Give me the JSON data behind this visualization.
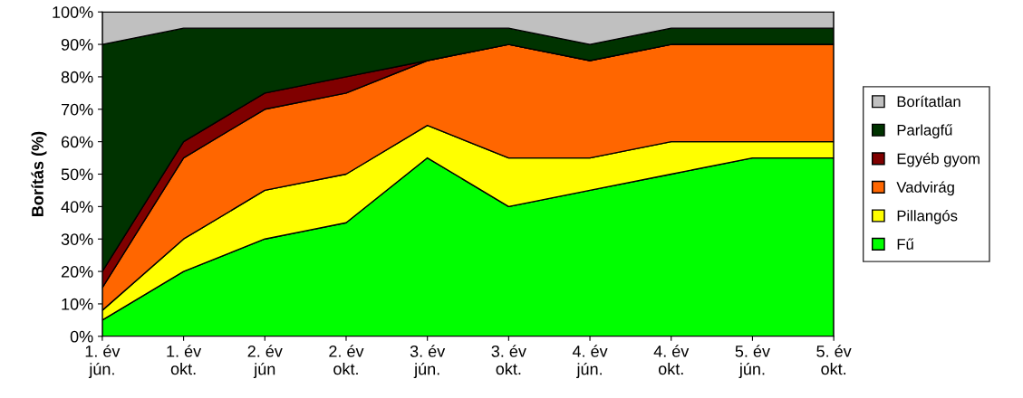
{
  "chart_data": {
    "type": "area",
    "stacked": true,
    "ylabel": "Borítás (%)",
    "categories": [
      "1. év\njún.",
      "1. év\nokt.",
      "2. év\njún",
      "2. év\nokt.",
      "3. év\njún.",
      "3. év\nokt.",
      "4. év\njún.",
      "4. év\nokt.",
      "5. év\njún.",
      "5. év\nokt."
    ],
    "ylim": [
      0,
      100
    ],
    "yticks": [
      {
        "value": 0,
        "label": "0%"
      },
      {
        "value": 10,
        "label": "10%"
      },
      {
        "value": 20,
        "label": "20%"
      },
      {
        "value": 30,
        "label": "30%"
      },
      {
        "value": 40,
        "label": "40%"
      },
      {
        "value": 50,
        "label": "50%"
      },
      {
        "value": 60,
        "label": "60%"
      },
      {
        "value": 70,
        "label": "70%"
      },
      {
        "value": 80,
        "label": "80%"
      },
      {
        "value": 90,
        "label": "90%"
      },
      {
        "value": 100,
        "label": "100%"
      }
    ],
    "grid": false,
    "legend": "right",
    "series": [
      {
        "name": "Fű",
        "color": "#00ff00",
        "values": [
          5,
          20,
          30,
          35,
          55,
          40,
          45,
          50,
          55,
          55
        ]
      },
      {
        "name": "Pillangós",
        "color": "#ffff00",
        "values": [
          3,
          10,
          15,
          15,
          10,
          15,
          10,
          10,
          5,
          5
        ]
      },
      {
        "name": "Vadvirág",
        "color": "#ff6600",
        "values": [
          7,
          25,
          25,
          25,
          20,
          35,
          30,
          30,
          30,
          30
        ]
      },
      {
        "name": "Egyéb gyom",
        "color": "#800000",
        "values": [
          5,
          5,
          5,
          5,
          0,
          0,
          0,
          0,
          0,
          0
        ]
      },
      {
        "name": "Parlagfű",
        "color": "#003300",
        "values": [
          70,
          35,
          20,
          15,
          10,
          5,
          5,
          5,
          5,
          5
        ]
      },
      {
        "name": "Borítatlan",
        "color": "#c0c0c0",
        "values": [
          10,
          5,
          5,
          5,
          5,
          5,
          10,
          5,
          5,
          5
        ]
      }
    ]
  }
}
